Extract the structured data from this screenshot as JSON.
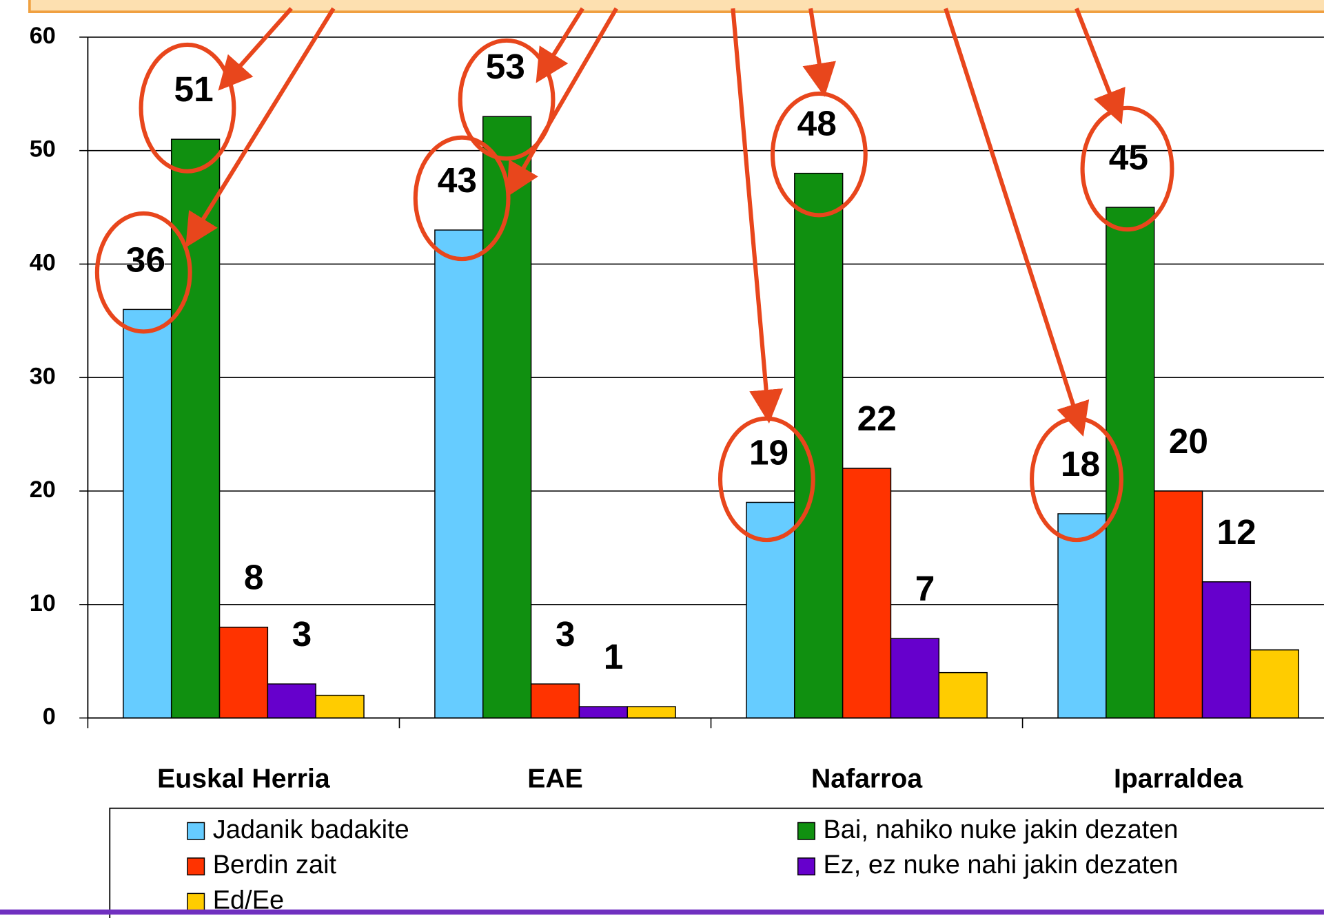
{
  "chart_data": {
    "type": "bar",
    "categories": [
      "Euskal Herria",
      "EAE",
      "Nafarroa",
      "Iparraldea"
    ],
    "series": [
      {
        "name": "Jadanik badakite",
        "color": "#66ccff",
        "values": [
          36,
          43,
          19,
          18
        ],
        "value_labels": [
          "36",
          "43",
          "19",
          "18"
        ]
      },
      {
        "name": "Bai, nahiko nuke jakin dezaten",
        "color": "#109010",
        "values": [
          51,
          53,
          48,
          45
        ],
        "value_labels": [
          "51",
          "53",
          "48",
          "45"
        ]
      },
      {
        "name": "Berdin zait",
        "color": "#ff3300",
        "values": [
          8,
          3,
          22,
          20
        ],
        "value_labels": [
          "8",
          "3",
          "22",
          "20"
        ]
      },
      {
        "name": "Ez, ez nuke nahi jakin dezaten",
        "color": "#6600cc",
        "values": [
          3,
          1,
          7,
          12
        ],
        "value_labels": [
          "3",
          "1",
          "7",
          "12"
        ]
      },
      {
        "name": "Ed/Ee",
        "color": "#ffcc00",
        "values": [
          2,
          1,
          4,
          6
        ]
      }
    ],
    "ylim": [
      0,
      60
    ],
    "yticks": [
      0,
      10,
      20,
      30,
      40,
      50,
      60
    ],
    "grid": true,
    "legend": "bottom"
  }
}
